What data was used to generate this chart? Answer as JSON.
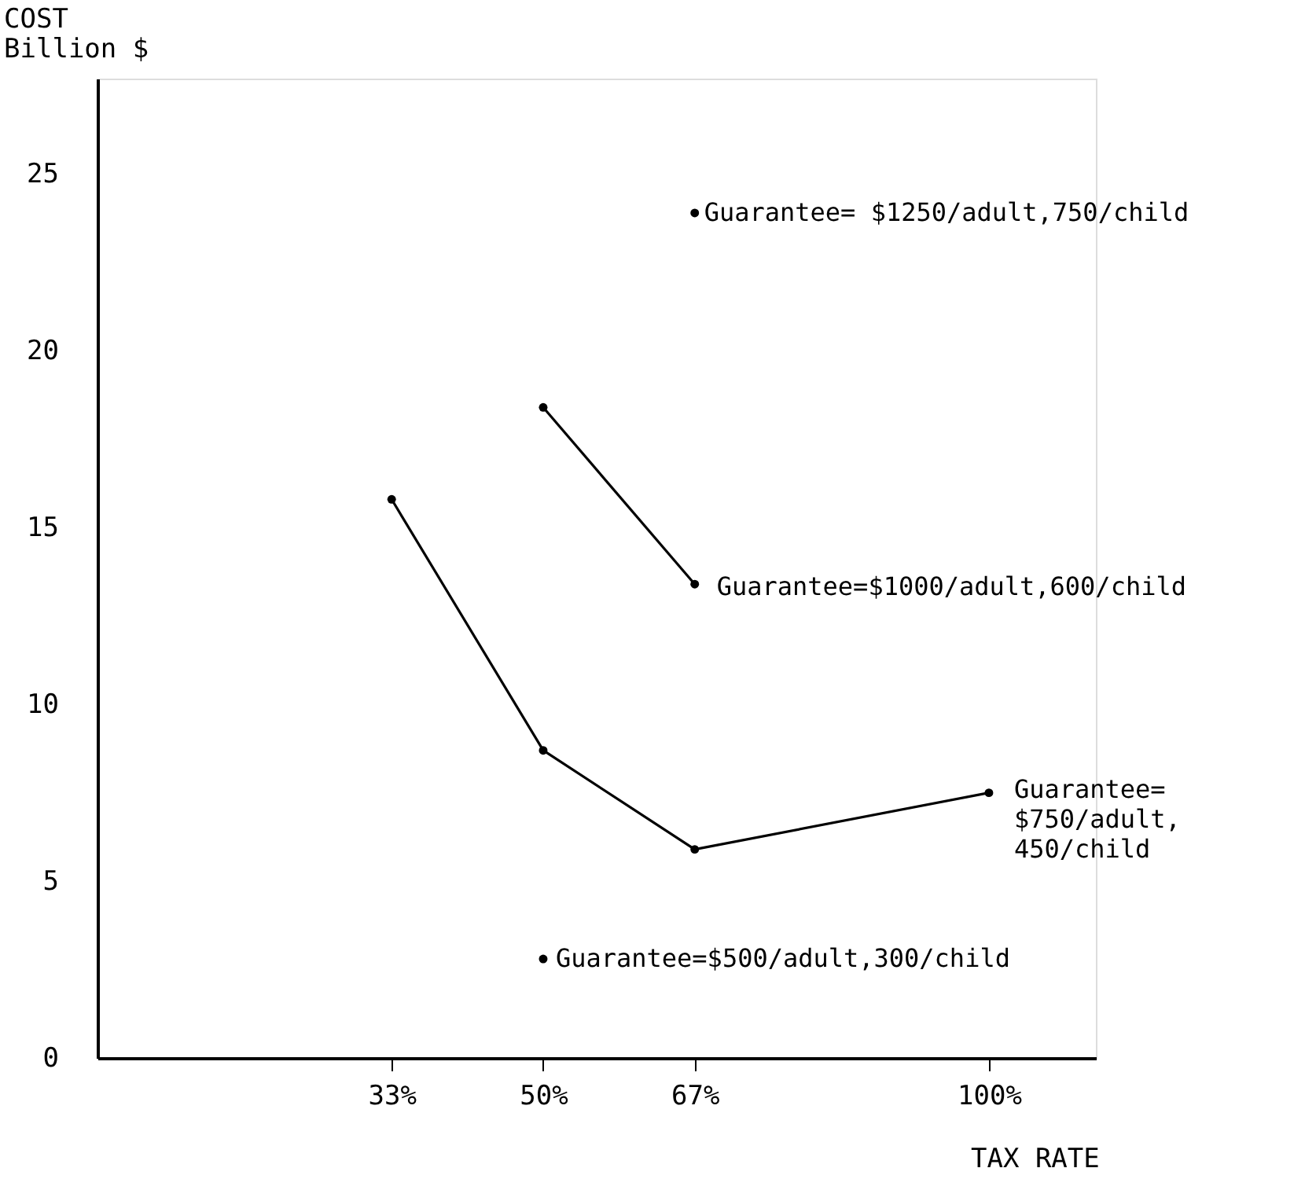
{
  "chart_data": {
    "type": "line",
    "xlabel": "TAX RATE",
    "ylabel": "COST\nBillion $",
    "xlim": [
      0,
      112
    ],
    "ylim": [
      0,
      27.7
    ],
    "xticks": [
      {
        "value": 33,
        "label": "33%"
      },
      {
        "value": 50,
        "label": "50%"
      },
      {
        "value": 67,
        "label": "67%"
      },
      {
        "value": 100,
        "label": "100%"
      }
    ],
    "yticks": [
      0,
      5,
      10,
      15,
      20,
      25
    ],
    "marker": "circle",
    "line_style": "solid",
    "series": [
      {
        "color": "#000000",
        "x": [
          33,
          50,
          67,
          100
        ],
        "values": [
          15.8,
          8.7,
          5.9,
          7.5
        ]
      },
      {
        "color": "#000000",
        "x": [
          50,
          67
        ],
        "values": [
          18.4,
          13.4
        ]
      },
      {
        "type": "scatter",
        "color": "#000000",
        "x": [
          67
        ],
        "values": [
          23.9
        ]
      },
      {
        "type": "scatter",
        "color": "#000000",
        "x": [
          50
        ],
        "values": [
          2.8
        ]
      }
    ],
    "annotations": [
      {
        "text": "Guarantee= $1250/adult,750/child",
        "x": 67,
        "y": 23.9
      },
      {
        "text": "Guarantee=$1000/adult,600/child",
        "x": 67,
        "y": 13.4
      },
      {
        "text": "Guarantee=\n$750/adult,\n450/child",
        "x": 100,
        "y": 7.5
      },
      {
        "text": "Guarantee=$500/adult,300/child",
        "x": 50,
        "y": 2.8
      }
    ]
  }
}
